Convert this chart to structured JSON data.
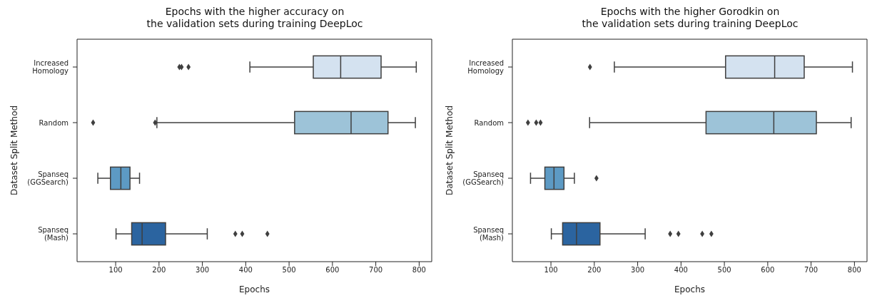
{
  "chart_data": [
    {
      "type": "box",
      "orientation": "horizontal",
      "title": "Epochs with the higher accuracy on\nthe validation sets during training DeepLoc",
      "xlabel": "Epochs",
      "ylabel": "Dataset Split Method",
      "categories": [
        "Increased\nHomology",
        "Random",
        "Spanseq\n(GGSearch)",
        "Spanseq\n(Mash)"
      ],
      "colors": [
        "#d4e2f0",
        "#9dc3d8",
        "#5d9ac4",
        "#2b64a0"
      ],
      "marker": "diamond",
      "xlim": [
        11,
        829
      ],
      "xticks": [
        100,
        200,
        300,
        400,
        500,
        600,
        700,
        800
      ],
      "boxes": [
        {
          "low": 410,
          "q1": 556,
          "median": 619,
          "q3": 712,
          "high": 793,
          "outliers": [
            247,
            252,
            268
          ]
        },
        {
          "low": 196,
          "q1": 513,
          "median": 643,
          "q3": 728,
          "high": 791,
          "outliers": [
            48,
            191
          ]
        },
        {
          "low": 59,
          "q1": 88,
          "median": 112,
          "q3": 133,
          "high": 155
        },
        {
          "low": 101,
          "q1": 137,
          "median": 161,
          "q3": 215,
          "high": 311,
          "outliers": [
            376,
            392,
            450
          ]
        }
      ]
    },
    {
      "type": "box",
      "orientation": "horizontal",
      "title": "Epochs with the higher Gorodkin on\nthe validation sets during training DeepLoc",
      "xlabel": "Epochs",
      "ylabel": "Dataset Split Method",
      "categories": [
        "Increased\nHomology",
        "Random",
        "Spanseq\n(GGSearch)",
        "Spanseq\n(Mash)"
      ],
      "colors": [
        "#d4e2f0",
        "#9dc3d8",
        "#5d9ac4",
        "#2b64a0"
      ],
      "marker": "diamond",
      "xlim": [
        11,
        829
      ],
      "xticks": [
        100,
        200,
        300,
        400,
        500,
        600,
        700,
        800
      ],
      "boxes": [
        {
          "low": 247,
          "q1": 503,
          "median": 616,
          "q3": 684,
          "high": 795,
          "outliers": [
            190
          ]
        },
        {
          "low": 190,
          "q1": 458,
          "median": 614,
          "q3": 712,
          "high": 792,
          "outliers": [
            47,
            66,
            76
          ]
        },
        {
          "low": 53,
          "q1": 86,
          "median": 107,
          "q3": 130,
          "high": 154,
          "outliers": [
            205
          ]
        },
        {
          "low": 101,
          "q1": 127,
          "median": 159,
          "q3": 213,
          "high": 317,
          "outliers": [
            375,
            394,
            449,
            470
          ]
        }
      ]
    }
  ]
}
